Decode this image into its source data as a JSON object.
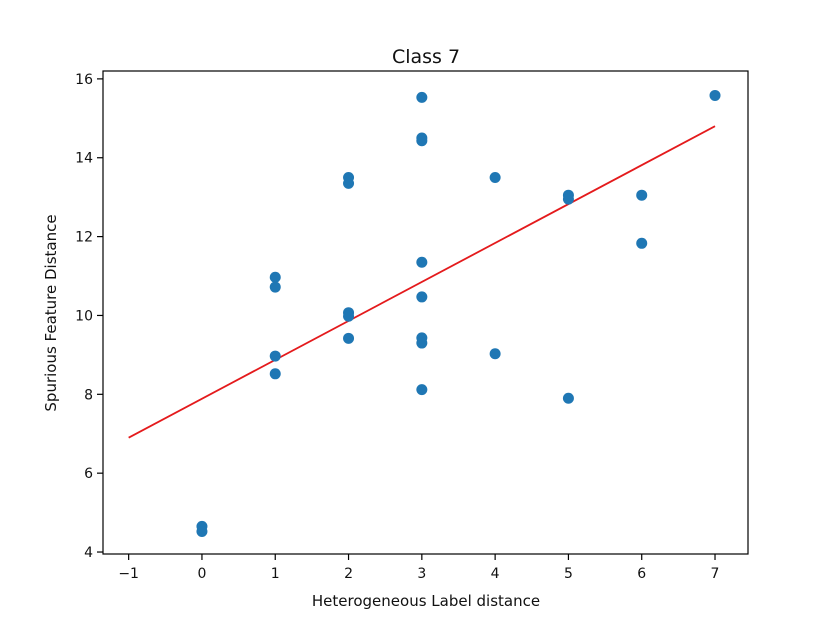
{
  "chart_data": {
    "type": "scatter",
    "title": "Class 7",
    "xlabel": "Heterogeneous Label distance",
    "ylabel": "Spurious Feature Distance",
    "xlim": [
      -1.35,
      7.45
    ],
    "ylim": [
      3.95,
      16.2
    ],
    "xticks": [
      -1,
      0,
      1,
      2,
      3,
      4,
      5,
      6,
      7
    ],
    "yticks": [
      4,
      6,
      8,
      10,
      12,
      14,
      16
    ],
    "xtick_labels": [
      "−1",
      "0",
      "1",
      "2",
      "3",
      "4",
      "5",
      "6",
      "7"
    ],
    "ytick_labels": [
      "4",
      "6",
      "8",
      "10",
      "12",
      "14",
      "16"
    ],
    "grid": false,
    "series": [
      {
        "type": "scatter",
        "color": "#1f77b4",
        "points": [
          [
            0,
            4.65
          ],
          [
            0,
            4.52
          ],
          [
            1,
            10.97
          ],
          [
            1,
            10.72
          ],
          [
            1,
            8.97
          ],
          [
            1,
            8.52
          ],
          [
            2,
            13.5
          ],
          [
            2,
            13.35
          ],
          [
            2,
            10.07
          ],
          [
            2,
            9.98
          ],
          [
            2,
            9.42
          ],
          [
            3,
            15.53
          ],
          [
            3,
            14.5
          ],
          [
            3,
            14.43
          ],
          [
            3,
            11.35
          ],
          [
            3,
            10.47
          ],
          [
            3,
            9.43
          ],
          [
            3,
            9.3
          ],
          [
            3,
            8.12
          ],
          [
            4,
            13.5
          ],
          [
            4,
            9.03
          ],
          [
            5,
            13.05
          ],
          [
            5,
            12.95
          ],
          [
            5,
            7.9
          ],
          [
            6,
            13.05
          ],
          [
            6,
            11.83
          ],
          [
            7,
            15.58
          ]
        ]
      },
      {
        "type": "line",
        "color": "#e41a1c",
        "points": [
          [
            -1,
            6.9
          ],
          [
            7,
            14.8
          ]
        ]
      }
    ]
  }
}
